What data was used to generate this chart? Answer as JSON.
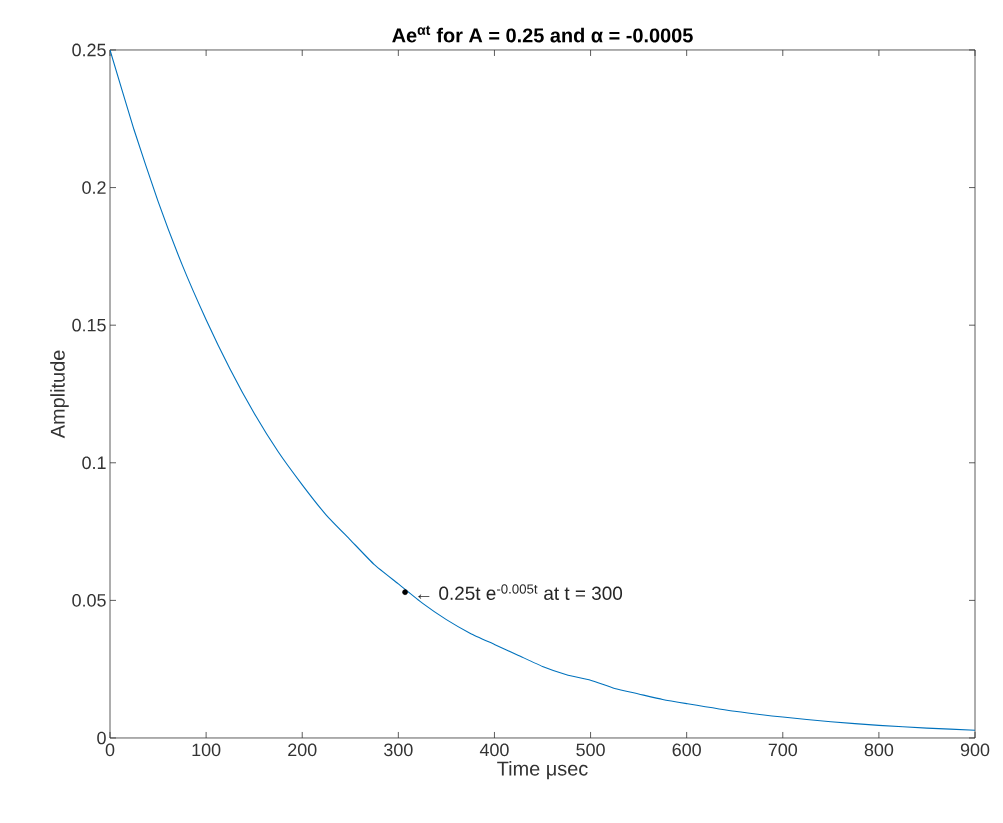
{
  "chart_data": {
    "type": "line",
    "title": "Ae$^{αt}$ for A = 0.25 and α = -0.0005",
    "xlabel": "Time μsec",
    "ylabel": "Amplitude",
    "xlim": [
      0,
      900
    ],
    "ylim": [
      0,
      0.25
    ],
    "xticks": [
      0,
      100,
      200,
      300,
      400,
      500,
      600,
      700,
      800,
      900
    ],
    "yticks": [
      0,
      0.05,
      0.1,
      0.15,
      0.2,
      0.25
    ],
    "grid": false,
    "series": [
      {
        "color": "#0072bd",
        "marker": "none",
        "x": [
          0,
          25,
          50,
          75,
          100,
          125,
          150,
          175,
          200,
          225,
          250,
          275,
          300,
          325,
          350,
          375,
          400,
          425,
          450,
          475,
          500,
          525,
          550,
          575,
          600,
          650,
          700,
          750,
          800,
          850,
          900
        ],
        "values": [
          0.25,
          0.221,
          0.195,
          0.172,
          0.152,
          0.134,
          0.118,
          0.104,
          0.092,
          0.081,
          0.072,
          0.063,
          0.056,
          0.049,
          0.043,
          0.038,
          0.034,
          0.03,
          0.026,
          0.023,
          0.021,
          0.018,
          0.016,
          0.014,
          0.0125,
          0.0097,
          0.0076,
          0.0059,
          0.0046,
          0.0036,
          0.0028
        ]
      },
      {
        "type": "scatter",
        "color": "#000000",
        "marker": "circle",
        "x": [
          307
        ],
        "values": [
          0.053
        ]
      }
    ],
    "annotations": [
      {
        "text": "← 0.25t e$^{-0.005t}$ at t = 300",
        "x": 307,
        "y": 0.053
      }
    ]
  }
}
